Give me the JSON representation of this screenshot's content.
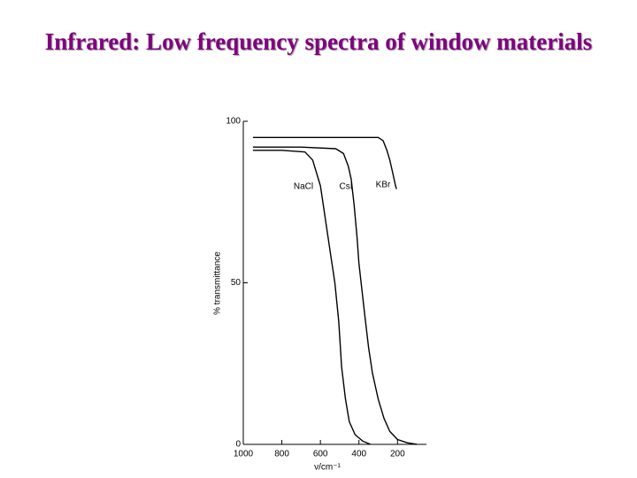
{
  "chart_data": {
    "type": "line",
    "title": "Infrared: Low frequency spectra of window materials",
    "xlabel": "ν/cm⁻¹",
    "ylabel": "% transmittance",
    "xlim": [
      1000,
      50
    ],
    "ylim": [
      0,
      100
    ],
    "xticks": [
      1000,
      800,
      600,
      400,
      200
    ],
    "yticks": [
      0,
      50,
      100
    ],
    "series": [
      {
        "name": "NaCl",
        "color": "#000000",
        "x": [
          950,
          800,
          680,
          640,
          600,
          570,
          545,
          525,
          505,
          490,
          470,
          450,
          420,
          380,
          340
        ],
        "values": [
          91,
          91,
          90.5,
          88,
          80,
          68,
          58,
          50,
          38,
          24,
          14,
          7,
          3,
          1,
          0
        ]
      },
      {
        "name": "CsI",
        "color": "#000000",
        "x": [
          950,
          700,
          520,
          480,
          455,
          440,
          425,
          410,
          400,
          385,
          370,
          350,
          330,
          300,
          270,
          240,
          200,
          150,
          100
        ],
        "values": [
          92,
          92,
          91.5,
          90,
          86,
          82,
          74,
          64,
          56,
          48,
          40,
          30,
          22,
          14,
          8,
          4,
          1.5,
          0.5,
          0
        ]
      },
      {
        "name": "KBr",
        "color": "#000000",
        "x": [
          950,
          600,
          300,
          275,
          255,
          240,
          225,
          210,
          205
        ],
        "values": [
          95,
          95,
          95,
          94,
          91,
          88,
          84,
          80,
          79
        ]
      }
    ]
  }
}
